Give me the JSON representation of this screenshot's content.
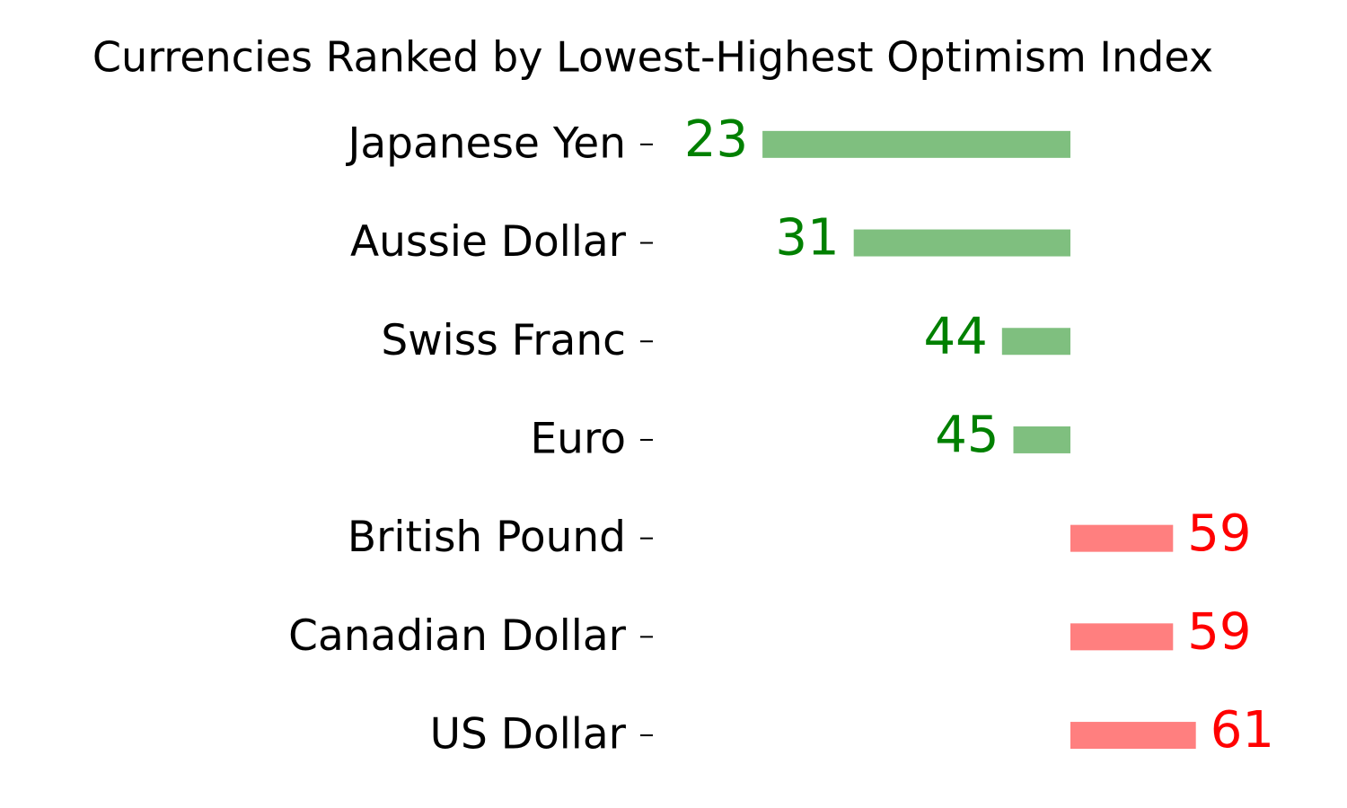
{
  "chart_data": {
    "type": "diverging-bar",
    "title": "Currencies Ranked by Lowest-Highest Optimism Index",
    "categories": [
      "Japanese Yen",
      "Aussie Dollar",
      "Swiss Franc",
      "Euro",
      "British Pound",
      "Canadian Dollar",
      "US Dollar"
    ],
    "values": [
      23,
      31,
      44,
      45,
      59,
      59,
      61
    ],
    "baseline": 50,
    "xlim": [
      15,
      68
    ],
    "below_color": "#008000",
    "above_color": "#ff0000"
  }
}
